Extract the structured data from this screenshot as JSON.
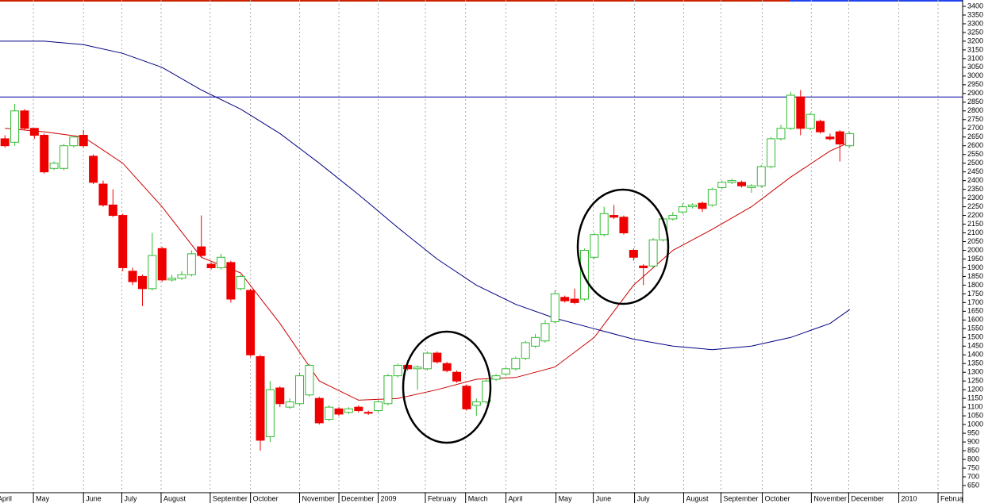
{
  "chart_data": {
    "type": "candlestick",
    "up_color": "#33bb33",
    "down_color": "#ee0000",
    "x": [
      0,
      1,
      2,
      3,
      4,
      5,
      6,
      7,
      8,
      9,
      10,
      11,
      12,
      13,
      14,
      15,
      16,
      17,
      18,
      19,
      20,
      21,
      22,
      23,
      24,
      25,
      26,
      27,
      28,
      29,
      30,
      31,
      32,
      33,
      34,
      35,
      36,
      37,
      38,
      39,
      40,
      41,
      42,
      43,
      44,
      45,
      46,
      47,
      48,
      49,
      50,
      51,
      52,
      53,
      54,
      55,
      56,
      57,
      58,
      59,
      60,
      61,
      62,
      63,
      64,
      65,
      66,
      67,
      68,
      69,
      70,
      71,
      72,
      73,
      74,
      75,
      76,
      77,
      78,
      79,
      80,
      81,
      82,
      83,
      84,
      85,
      86
    ],
    "open": [
      2640,
      2620,
      2800,
      2700,
      2660,
      2470,
      2470,
      2600,
      2660,
      2540,
      2380,
      2260,
      2200,
      1880,
      1850,
      1780,
      2010,
      1830,
      1840,
      1860,
      2020,
      1920,
      1900,
      1930,
      1780,
      1770,
      1390,
      930,
      1210,
      1100,
      1120,
      1170,
      1150,
      1030,
      1090,
      1070,
      1100,
      1070,
      1080,
      1120,
      1280,
      1340,
      1320,
      1320,
      1410,
      1350,
      1300,
      1220,
      1110,
      1130,
      1260,
      1290,
      1320,
      1380,
      1450,
      1480,
      1590,
      1730,
      1720,
      1720,
      1960,
      2090,
      2200,
      2190,
      2000,
      1910,
      1910,
      2060,
      2180,
      2220,
      2250,
      2270,
      2260,
      2360,
      2390,
      2390,
      2360,
      2370,
      2480,
      2640,
      2700,
      2880,
      2700,
      2740,
      2650,
      2680,
      2600
    ],
    "high": [
      2660,
      2840,
      2810,
      2700,
      2670,
      2510,
      2610,
      2660,
      2690,
      2550,
      2400,
      2350,
      2210,
      1900,
      1860,
      2100,
      2020,
      1860,
      1880,
      2000,
      2200,
      1930,
      1980,
      1940,
      1860,
      1780,
      1400,
      1250,
      1220,
      1150,
      1300,
      1350,
      1160,
      1110,
      1100,
      1100,
      1110,
      1080,
      1140,
      1290,
      1350,
      1370,
      1340,
      1420,
      1420,
      1360,
      1310,
      1230,
      1150,
      1260,
      1290,
      1330,
      1390,
      1480,
      1520,
      1600,
      1770,
      1740,
      1780,
      2010,
      2100,
      2250,
      2260,
      2200,
      2010,
      1920,
      2070,
      2190,
      2220,
      2270,
      2270,
      2280,
      2360,
      2400,
      2410,
      2400,
      2380,
      2490,
      2650,
      2720,
      2910,
      2920,
      2790,
      2750,
      2670,
      2690,
      2680
    ],
    "low": [
      2590,
      2600,
      2690,
      2640,
      2440,
      2460,
      2460,
      2590,
      2590,
      2380,
      2250,
      2190,
      1880,
      1800,
      1680,
      1770,
      1820,
      1820,
      1830,
      1850,
      1960,
      1890,
      1890,
      1700,
      1770,
      1390,
      850,
      900,
      1100,
      1090,
      1110,
      1160,
      1000,
      1020,
      1050,
      1060,
      1070,
      1055,
      1070,
      1110,
      1270,
      1310,
      1200,
      1310,
      1350,
      1300,
      1240,
      1080,
      1050,
      1120,
      1250,
      1280,
      1310,
      1370,
      1440,
      1470,
      1580,
      1700,
      1690,
      1710,
      1950,
      2080,
      2180,
      2090,
      1940,
      1800,
      1900,
      2050,
      2170,
      2210,
      2240,
      2220,
      2250,
      2350,
      2380,
      2360,
      2330,
      2360,
      2470,
      2630,
      2690,
      2660,
      2690,
      2670,
      2630,
      2510,
      2590
    ],
    "close": [
      2600,
      2800,
      2700,
      2660,
      2450,
      2500,
      2600,
      2650,
      2600,
      2390,
      2260,
      2200,
      1900,
      1820,
      1780,
      1970,
      1830,
      1840,
      1860,
      1980,
      1970,
      1900,
      1960,
      1720,
      1850,
      1400,
      910,
      1200,
      1120,
      1130,
      1280,
      1340,
      1010,
      1100,
      1060,
      1090,
      1080,
      1065,
      1130,
      1280,
      1340,
      1320,
      1330,
      1410,
      1360,
      1310,
      1250,
      1090,
      1130,
      1250,
      1280,
      1320,
      1380,
      1470,
      1500,
      1580,
      1750,
      1710,
      1700,
      2000,
      2090,
      2210,
      2190,
      2100,
      1960,
      1900,
      2060,
      2180,
      2200,
      2250,
      2260,
      2240,
      2350,
      2390,
      2400,
      2370,
      2370,
      2480,
      2640,
      2700,
      2890,
      2700,
      2780,
      2680,
      2640,
      2610,
      2670
    ],
    "lines": [
      {
        "color": "#cc0000",
        "x": [
          0,
          4,
          8,
          12,
          16,
          20,
          24,
          28,
          32,
          36,
          40,
          44,
          48,
          52,
          56,
          60,
          64,
          68,
          72,
          76,
          80,
          84,
          86
        ],
        "values": [
          2700,
          2680,
          2650,
          2500,
          2250,
          1960,
          1870,
          1580,
          1250,
          1140,
          1150,
          1200,
          1260,
          1270,
          1330,
          1500,
          1800,
          2000,
          2120,
          2250,
          2420,
          2570,
          2620
        ]
      },
      {
        "color": "#000080",
        "x": [
          -0.5,
          4,
          8,
          12,
          16,
          20,
          24,
          28,
          32,
          36,
          40,
          44,
          48,
          52,
          56,
          60,
          64,
          68,
          72,
          76,
          80,
          84,
          86
        ],
        "values": [
          3200,
          3200,
          3180,
          3130,
          3050,
          2920,
          2810,
          2670,
          2500,
          2320,
          2130,
          1950,
          1800,
          1690,
          1610,
          1550,
          1490,
          1450,
          1430,
          1450,
          1500,
          1580,
          1660
        ]
      }
    ],
    "hlines": [
      {
        "value": 2880,
        "color": "#0000aa"
      }
    ],
    "xlim": [
      -0.5,
      97.5
    ],
    "ylim": [
      650,
      3400
    ],
    "xticks": [
      {
        "value": -1,
        "label": "April"
      },
      {
        "value": 2.9,
        "label": "May"
      },
      {
        "value": 8.0,
        "label": "June"
      },
      {
        "value": 11.9,
        "label": "July"
      },
      {
        "value": 15.9,
        "label": "August"
      },
      {
        "value": 20.9,
        "label": "September"
      },
      {
        "value": 25.0,
        "label": "October"
      },
      {
        "value": 30.0,
        "label": "November"
      },
      {
        "value": 34.0,
        "label": "December"
      },
      {
        "value": 38.0,
        "label": "2009"
      },
      {
        "value": 42.8,
        "label": "February"
      },
      {
        "value": 46.9,
        "label": "March"
      },
      {
        "value": 51.0,
        "label": "April"
      },
      {
        "value": 56.1,
        "label": "May"
      },
      {
        "value": 59.9,
        "label": "June"
      },
      {
        "value": 64.1,
        "label": "July"
      },
      {
        "value": 69.1,
        "label": "August"
      },
      {
        "value": 72.9,
        "label": "September"
      },
      {
        "value": 77.1,
        "label": "October"
      },
      {
        "value": 82.1,
        "label": "November"
      },
      {
        "value": 85.9,
        "label": "December"
      },
      {
        "value": 91.0,
        "label": "2010"
      },
      {
        "value": 95.0,
        "label": "February"
      }
    ],
    "yticks": [
      650,
      700,
      750,
      800,
      850,
      900,
      950,
      1000,
      1050,
      1100,
      1150,
      1200,
      1250,
      1300,
      1350,
      1400,
      1450,
      1500,
      1550,
      1600,
      1650,
      1700,
      1750,
      1800,
      1850,
      1900,
      1950,
      2000,
      2050,
      2100,
      2150,
      2200,
      2250,
      2300,
      2350,
      2400,
      2450,
      2500,
      2550,
      2600,
      2650,
      2700,
      2750,
      2800,
      2850,
      2900,
      2950,
      3000,
      3050,
      3100,
      3150,
      3200,
      3250,
      3300,
      3350,
      3400
    ],
    "grid": true
  }
}
